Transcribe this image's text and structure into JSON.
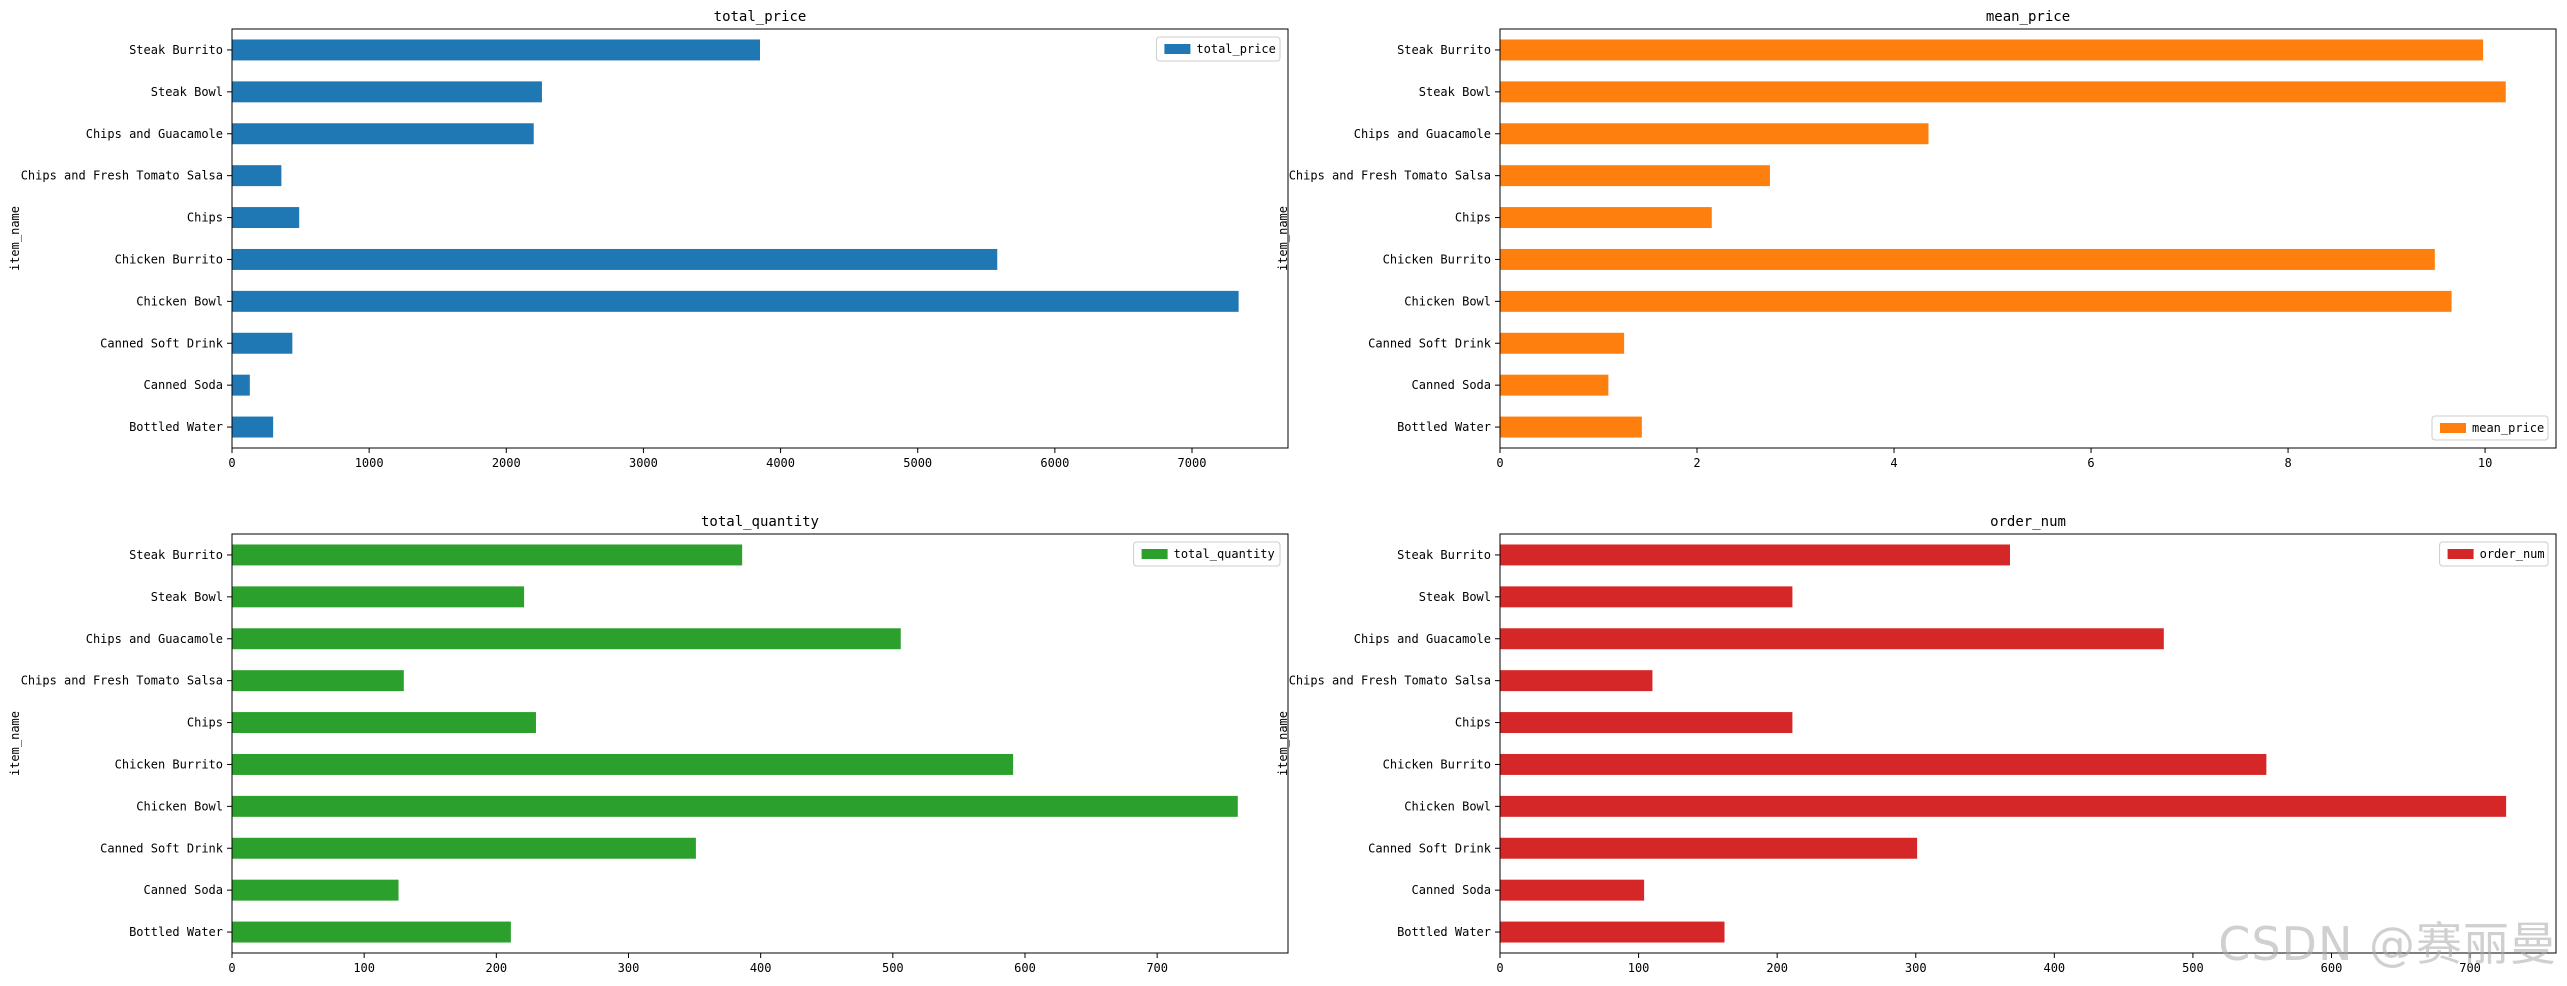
{
  "chart_data": [
    {
      "type": "bar",
      "orientation": "horizontal",
      "title": "total_price",
      "ylabel": "item_name",
      "xlabel": "",
      "color": "#1f77b4",
      "legend": "top-right",
      "series": [
        {
          "name": "total_price",
          "values": [
            3850,
            2260,
            2200,
            360,
            490,
            5580,
            7340,
            440,
            130,
            300
          ]
        }
      ],
      "categories": [
        "Steak Burrito",
        "Steak Bowl",
        "Chips and Guacamole",
        "Chips and Fresh Tomato Salsa",
        "Chips",
        "Chicken Burrito",
        "Chicken Bowl",
        "Canned Soft Drink",
        "Canned Soda",
        "Bottled Water"
      ],
      "xlim": [
        0,
        7700
      ],
      "xticks": [
        0,
        1000,
        2000,
        3000,
        4000,
        5000,
        6000,
        7000
      ],
      "xtick_labels": [
        "0",
        "1000",
        "2000",
        "3000",
        "4000",
        "5000",
        "6000",
        "7000"
      ]
    },
    {
      "type": "bar",
      "orientation": "horizontal",
      "title": "mean_price",
      "ylabel": "item_name",
      "xlabel": "",
      "color": "#ff7f0e",
      "legend": "bottom-right",
      "series": [
        {
          "name": "mean_price",
          "values": [
            9.98,
            10.21,
            4.35,
            2.74,
            2.15,
            9.49,
            9.66,
            1.26,
            1.1,
            1.44
          ]
        }
      ],
      "categories": [
        "Steak Burrito",
        "Steak Bowl",
        "Chips and Guacamole",
        "Chips and Fresh Tomato Salsa",
        "Chips",
        "Chicken Burrito",
        "Chicken Bowl",
        "Canned Soft Drink",
        "Canned Soda",
        "Bottled Water"
      ],
      "xlim": [
        0,
        10.72
      ],
      "xticks": [
        0,
        2,
        4,
        6,
        8,
        10
      ],
      "xtick_labels": [
        "0",
        "2",
        "4",
        "6",
        "8",
        "10"
      ]
    },
    {
      "type": "bar",
      "orientation": "horizontal",
      "title": "total_quantity",
      "ylabel": "item_name",
      "xlabel": "",
      "color": "#2ca02c",
      "legend": "top-right",
      "series": [
        {
          "name": "total_quantity",
          "values": [
            386,
            221,
            506,
            130,
            230,
            591,
            761,
            351,
            126,
            211
          ]
        }
      ],
      "categories": [
        "Steak Burrito",
        "Steak Bowl",
        "Chips and Guacamole",
        "Chips and Fresh Tomato Salsa",
        "Chips",
        "Chicken Burrito",
        "Chicken Bowl",
        "Canned Soft Drink",
        "Canned Soda",
        "Bottled Water"
      ],
      "xlim": [
        0,
        799
      ],
      "xticks": [
        0,
        100,
        200,
        300,
        400,
        500,
        600,
        700
      ],
      "xtick_labels": [
        "0",
        "100",
        "200",
        "300",
        "400",
        "500",
        "600",
        "700"
      ]
    },
    {
      "type": "bar",
      "orientation": "horizontal",
      "title": "order_num",
      "ylabel": "item_name",
      "xlabel": "",
      "color": "#d62728",
      "legend": "top-right",
      "series": [
        {
          "name": "order_num",
          "values": [
            368,
            211,
            479,
            110,
            211,
            553,
            726,
            301,
            104,
            162
          ]
        }
      ],
      "categories": [
        "Steak Burrito",
        "Steak Bowl",
        "Chips and Guacamole",
        "Chips and Fresh Tomato Salsa",
        "Chips",
        "Chicken Burrito",
        "Chicken Bowl",
        "Canned Soft Drink",
        "Canned Soda",
        "Bottled Water"
      ],
      "xlim": [
        0,
        762
      ],
      "xticks": [
        0,
        100,
        200,
        300,
        400,
        500,
        600,
        700
      ],
      "xtick_labels": [
        "0",
        "100",
        "200",
        "300",
        "400",
        "500",
        "600",
        "700"
      ]
    }
  ],
  "watermark": "CSDN @赛丽曼"
}
